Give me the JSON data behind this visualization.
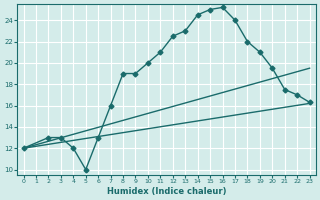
{
  "xlabel": "Humidex (Indice chaleur)",
  "ylabel": "",
  "bg_color": "#d4ecea",
  "grid_color": "#ffffff",
  "line_color": "#1a6b6b",
  "xlim": [
    -0.5,
    23.5
  ],
  "ylim": [
    9.5,
    25.5
  ],
  "xticks": [
    0,
    1,
    2,
    3,
    4,
    5,
    6,
    7,
    8,
    9,
    10,
    11,
    12,
    13,
    14,
    15,
    16,
    17,
    18,
    19,
    20,
    21,
    22,
    23
  ],
  "yticks": [
    10,
    12,
    14,
    16,
    18,
    20,
    22,
    24
  ],
  "line1_x": [
    0,
    2,
    3,
    4,
    5,
    6,
    7,
    8,
    9,
    10,
    11,
    12,
    13,
    14,
    15,
    16,
    17,
    18,
    19,
    20,
    21,
    22,
    23
  ],
  "line1_y": [
    12,
    13,
    13,
    12,
    10,
    13,
    16,
    19,
    19,
    20,
    21,
    22.5,
    23,
    24.5,
    25,
    25.2,
    24,
    22,
    21,
    19.5,
    17.5,
    17,
    16.3
  ],
  "line2_x": [
    0,
    23
  ],
  "line2_y": [
    12,
    19.5
  ],
  "line3_x": [
    0,
    23
  ],
  "line3_y": [
    12,
    16.2
  ]
}
